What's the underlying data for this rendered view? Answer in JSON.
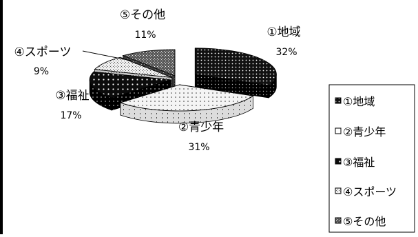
{
  "chart_data": {
    "type": "pie",
    "style": "3d-exploded",
    "title": "",
    "legend_position": "right",
    "slices": [
      {
        "label": "①地域",
        "value": 32,
        "percent_label": "32%",
        "fill": "dark-dots"
      },
      {
        "label": "②青少年",
        "value": 31,
        "percent_label": "31%",
        "fill": "light-dots"
      },
      {
        "label": "③福祉",
        "value": 17,
        "percent_label": "17%",
        "fill": "dark-dots-sparse"
      },
      {
        "label": "④スポーツ",
        "value": 9,
        "percent_label": "9%",
        "fill": "light-grid"
      },
      {
        "label": "⑤その他",
        "value": 11,
        "percent_label": "11%",
        "fill": "mid-grid"
      }
    ],
    "colors": {
      "ink": "#000000",
      "background": "#ffffff",
      "light_fill": "#e8e8e8",
      "mid_fill": "#8a8a8a",
      "dark_fill": "#1a1a1a"
    }
  }
}
